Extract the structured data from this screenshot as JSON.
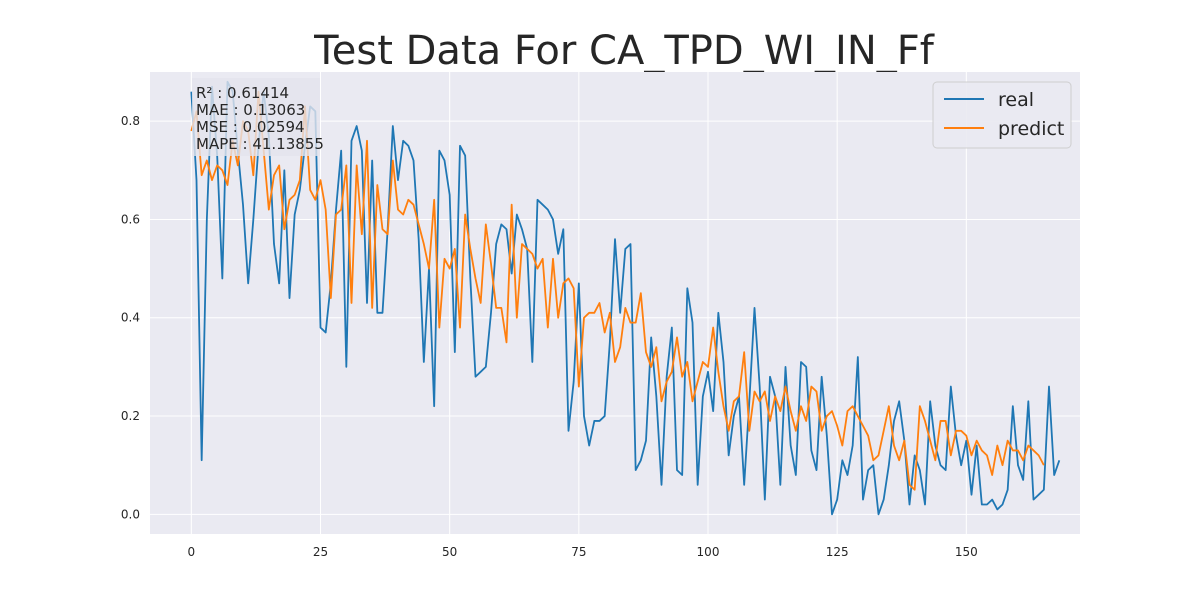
{
  "chart_data": {
    "type": "line",
    "title": "Test Data For CA_TPD_WI_IN_Ff",
    "xlabel": "",
    "ylabel": "",
    "xlim": [
      -8,
      172
    ],
    "ylim": [
      -0.04,
      0.9
    ],
    "xticks": [
      0,
      25,
      50,
      75,
      100,
      125,
      150
    ],
    "yticks": [
      0.0,
      0.2,
      0.4,
      0.6,
      0.8
    ],
    "ytick_labels": [
      "0.0",
      "0.2",
      "0.4",
      "0.6",
      "0.8"
    ],
    "grid": true,
    "legend_position": "top-right",
    "annotations": [
      "R² : 0.61414",
      "MAE : 0.13063",
      "MSE : 0.02594",
      "MAPE : 41.13855"
    ],
    "series": [
      {
        "name": "real",
        "color": "#1f77b4",
        "values": [
          0.86,
          0.68,
          0.11,
          0.6,
          0.87,
          0.73,
          0.48,
          0.88,
          0.86,
          0.74,
          0.63,
          0.47,
          0.6,
          0.75,
          0.86,
          0.77,
          0.55,
          0.47,
          0.7,
          0.44,
          0.61,
          0.66,
          0.75,
          0.83,
          0.82,
          0.38,
          0.37,
          0.47,
          0.62,
          0.74,
          0.3,
          0.76,
          0.79,
          0.74,
          0.43,
          0.72,
          0.41,
          0.41,
          0.58,
          0.79,
          0.68,
          0.76,
          0.75,
          0.72,
          0.56,
          0.31,
          0.5,
          0.22,
          0.74,
          0.72,
          0.65,
          0.33,
          0.75,
          0.73,
          0.48,
          0.28,
          0.29,
          0.3,
          0.41,
          0.55,
          0.59,
          0.58,
          0.49,
          0.61,
          0.58,
          0.54,
          0.31,
          0.64,
          0.63,
          0.62,
          0.6,
          0.53,
          0.58,
          0.17,
          0.27,
          0.47,
          0.2,
          0.14,
          0.19,
          0.19,
          0.2,
          0.35,
          0.56,
          0.41,
          0.54,
          0.55,
          0.09,
          0.11,
          0.15,
          0.36,
          0.24,
          0.06,
          0.28,
          0.38,
          0.09,
          0.08,
          0.46,
          0.39,
          0.06,
          0.24,
          0.29,
          0.21,
          0.41,
          0.31,
          0.12,
          0.2,
          0.24,
          0.06,
          0.23,
          0.42,
          0.26,
          0.03,
          0.28,
          0.24,
          0.06,
          0.3,
          0.14,
          0.08,
          0.31,
          0.3,
          0.13,
          0.09,
          0.28,
          0.16,
          0.0,
          0.03,
          0.11,
          0.08,
          0.14,
          0.32,
          0.03,
          0.09,
          0.1,
          0.0,
          0.03,
          0.1,
          0.19,
          0.23,
          0.15,
          0.02,
          0.12,
          0.09,
          0.02,
          0.23,
          0.14,
          0.1,
          0.09,
          0.26,
          0.16,
          0.1,
          0.15,
          0.04,
          0.14,
          0.02,
          0.02,
          0.03,
          0.01,
          0.02,
          0.05,
          0.22,
          0.1,
          0.07,
          0.23,
          0.03,
          0.04,
          0.05,
          0.26,
          0.08,
          0.11
        ]
      },
      {
        "name": "predict",
        "color": "#ff7f0e",
        "values": [
          0.78,
          0.82,
          0.69,
          0.72,
          0.68,
          0.71,
          0.7,
          0.67,
          0.76,
          0.71,
          0.8,
          0.78,
          0.69,
          0.86,
          0.74,
          0.62,
          0.69,
          0.71,
          0.58,
          0.64,
          0.65,
          0.68,
          0.83,
          0.66,
          0.64,
          0.68,
          0.62,
          0.44,
          0.61,
          0.62,
          0.71,
          0.43,
          0.71,
          0.57,
          0.76,
          0.42,
          0.67,
          0.58,
          0.57,
          0.72,
          0.62,
          0.61,
          0.64,
          0.63,
          0.59,
          0.55,
          0.5,
          0.64,
          0.38,
          0.52,
          0.5,
          0.54,
          0.38,
          0.61,
          0.54,
          0.48,
          0.43,
          0.59,
          0.51,
          0.42,
          0.42,
          0.35,
          0.63,
          0.4,
          0.55,
          0.54,
          0.53,
          0.5,
          0.52,
          0.38,
          0.52,
          0.4,
          0.47,
          0.48,
          0.46,
          0.26,
          0.4,
          0.41,
          0.41,
          0.43,
          0.37,
          0.41,
          0.31,
          0.34,
          0.42,
          0.39,
          0.39,
          0.45,
          0.33,
          0.3,
          0.34,
          0.23,
          0.27,
          0.29,
          0.36,
          0.28,
          0.31,
          0.23,
          0.27,
          0.31,
          0.3,
          0.38,
          0.29,
          0.22,
          0.17,
          0.23,
          0.24,
          0.33,
          0.17,
          0.25,
          0.23,
          0.25,
          0.19,
          0.24,
          0.21,
          0.26,
          0.21,
          0.17,
          0.22,
          0.19,
          0.26,
          0.25,
          0.17,
          0.2,
          0.21,
          0.18,
          0.14,
          0.21,
          0.22,
          0.2,
          0.18,
          0.16,
          0.11,
          0.12,
          0.17,
          0.22,
          0.14,
          0.11,
          0.15,
          0.06,
          0.05,
          0.22,
          0.19,
          0.15,
          0.11,
          0.19,
          0.19,
          0.12,
          0.17,
          0.17,
          0.16,
          0.12,
          0.15,
          0.13,
          0.12,
          0.08,
          0.14,
          0.1,
          0.15,
          0.13,
          0.13,
          0.11,
          0.14,
          0.13,
          0.12,
          0.1
        ]
      }
    ]
  }
}
